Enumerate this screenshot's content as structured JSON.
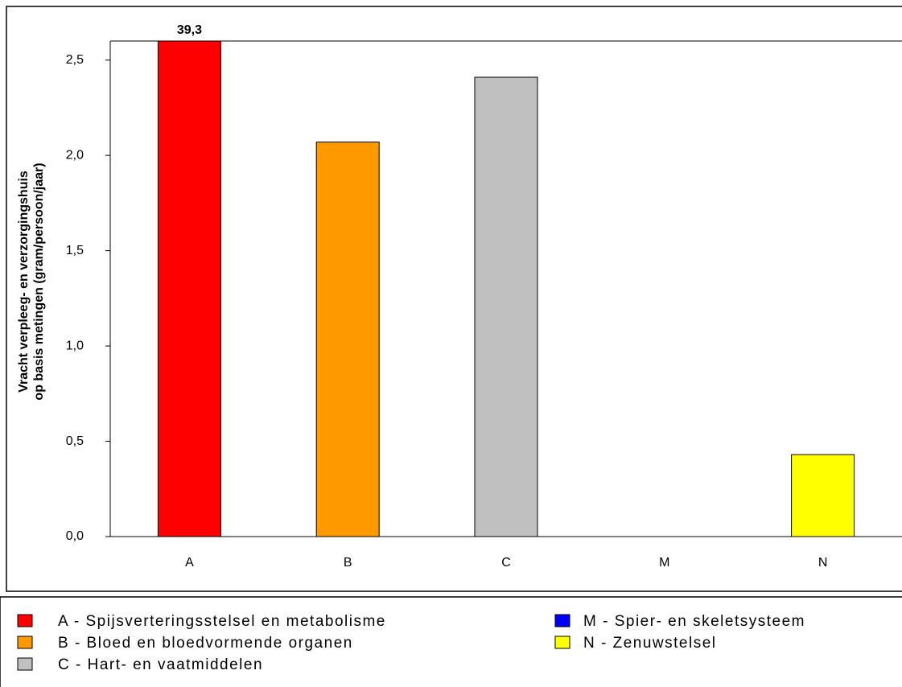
{
  "chart_data": {
    "type": "bar",
    "y_label": [
      "Vracht verpleeg- en verzorgingshuis",
      "op basis metingen (gram/persoon/jaar)"
    ],
    "categories": [
      "A",
      "B",
      "C",
      "M",
      "N"
    ],
    "values": [
      39.3,
      2.07,
      2.41,
      0,
      0.43
    ],
    "value_labels": [
      "39,3",
      null,
      null,
      null,
      null
    ],
    "colors": [
      "#ff0000",
      "#ff9900",
      "#c0c0c0",
      "#0000ff",
      "#ffff00"
    ],
    "legend_labels": [
      "A - Spijsverteringsstelsel en metabolisme",
      "B - Bloed en bloedvormende organen",
      "C - Hart- en vaatmiddelen",
      "M - Spier- en skeletsysteem",
      "N - Zenuwstelsel"
    ],
    "ylim": [
      0,
      2.6
    ],
    "yticks": [
      {
        "value": 0,
        "label": "0,0"
      },
      {
        "value": 0.5,
        "label": "0,5"
      },
      {
        "value": 1,
        "label": "1,0"
      },
      {
        "value": 1.5,
        "label": "1,5"
      },
      {
        "value": 2,
        "label": "2,0"
      },
      {
        "value": 2.5,
        "label": "2,5"
      }
    ],
    "grid": false
  }
}
